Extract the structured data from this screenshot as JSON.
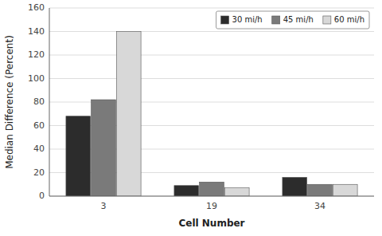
{
  "chart_data": {
    "type": "bar",
    "x_label": "Cell Number",
    "y_label": "Median Difference (Percent)",
    "categories": [
      "3",
      "19",
      "34"
    ],
    "series": [
      {
        "name": "30 mi/h",
        "color": "#2c2c2c",
        "values": [
          68,
          9,
          16
        ]
      },
      {
        "name": "45 mi/h",
        "color": "#7a7a7a",
        "values": [
          82,
          12,
          10
        ]
      },
      {
        "name": "60 mi/h",
        "color": "#d8d8d8",
        "values": [
          140,
          7,
          10
        ]
      }
    ],
    "ylim": [
      0,
      160
    ],
    "yticks": [
      0,
      20,
      40,
      60,
      80,
      100,
      120,
      140,
      160
    ],
    "grid": true,
    "legend": "upper right"
  }
}
